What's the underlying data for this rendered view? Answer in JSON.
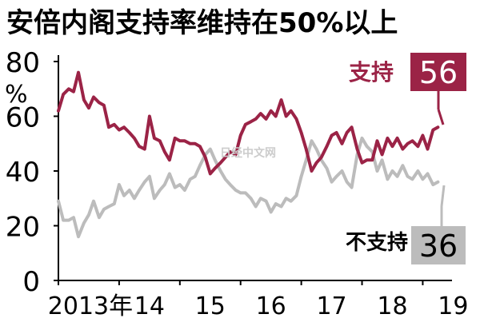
{
  "title": "安倍内阁支持率维持在50%以上",
  "watermark": "日经中文网",
  "legend": {
    "support": {
      "label": "支持",
      "last_value": "56",
      "color": "#9b2346"
    },
    "oppose": {
      "label": "不支持",
      "last_value": "36",
      "color": "#bcbcbc"
    }
  },
  "chart_data": {
    "type": "line",
    "ylabel": "%",
    "ylim": [
      0,
      80
    ],
    "yticks": [
      "0",
      "20",
      "40",
      "60",
      "80"
    ],
    "xlim": [
      2013.0,
      2019.35
    ],
    "xticks": [
      {
        "x": 2013.0,
        "label": "2013年"
      },
      {
        "x": 2014.0,
        "label": "14"
      },
      {
        "x": 2015.0,
        "label": "15"
      },
      {
        "x": 2016.0,
        "label": "16"
      },
      {
        "x": 2017.0,
        "label": "17"
      },
      {
        "x": 2018.0,
        "label": "18"
      },
      {
        "x": 2019.0,
        "label": "19"
      }
    ],
    "series": [
      {
        "name": "支持",
        "color": "#9b2346",
        "points": [
          [
            2013.0,
            62
          ],
          [
            2013.08,
            68
          ],
          [
            2013.17,
            70
          ],
          [
            2013.25,
            69
          ],
          [
            2013.33,
            76
          ],
          [
            2013.42,
            66
          ],
          [
            2013.5,
            63
          ],
          [
            2013.58,
            67
          ],
          [
            2013.67,
            65
          ],
          [
            2013.75,
            64
          ],
          [
            2013.83,
            56
          ],
          [
            2013.92,
            57
          ],
          [
            2014.0,
            55
          ],
          [
            2014.08,
            56
          ],
          [
            2014.17,
            54
          ],
          [
            2014.25,
            52
          ],
          [
            2014.33,
            49
          ],
          [
            2014.42,
            48
          ],
          [
            2014.5,
            60
          ],
          [
            2014.58,
            52
          ],
          [
            2014.67,
            51
          ],
          [
            2014.75,
            47
          ],
          [
            2014.83,
            44
          ],
          [
            2014.92,
            52
          ],
          [
            2015.0,
            51
          ],
          [
            2015.08,
            51
          ],
          [
            2015.17,
            50
          ],
          [
            2015.25,
            50
          ],
          [
            2015.33,
            49
          ],
          [
            2015.42,
            45
          ],
          [
            2015.5,
            39
          ],
          [
            2015.58,
            41
          ],
          [
            2015.67,
            43
          ],
          [
            2015.75,
            45
          ],
          [
            2015.83,
            47
          ],
          [
            2015.92,
            46
          ],
          [
            2016.0,
            53
          ],
          [
            2016.08,
            57
          ],
          [
            2016.17,
            58
          ],
          [
            2016.25,
            59
          ],
          [
            2016.33,
            61
          ],
          [
            2016.42,
            59
          ],
          [
            2016.5,
            62
          ],
          [
            2016.58,
            60
          ],
          [
            2016.67,
            66
          ],
          [
            2016.75,
            60
          ],
          [
            2016.83,
            62
          ],
          [
            2016.92,
            59
          ],
          [
            2017.0,
            54
          ],
          [
            2017.08,
            48
          ],
          [
            2017.17,
            40
          ],
          [
            2017.25,
            43
          ],
          [
            2017.33,
            45
          ],
          [
            2017.42,
            49
          ],
          [
            2017.5,
            53
          ],
          [
            2017.58,
            54
          ],
          [
            2017.67,
            50
          ],
          [
            2017.75,
            54
          ],
          [
            2017.83,
            56
          ],
          [
            2017.92,
            48
          ],
          [
            2018.0,
            43
          ],
          [
            2018.08,
            44
          ],
          [
            2018.17,
            44
          ],
          [
            2018.25,
            51
          ],
          [
            2018.33,
            46
          ],
          [
            2018.42,
            52
          ],
          [
            2018.5,
            49
          ],
          [
            2018.58,
            52
          ],
          [
            2018.67,
            48
          ],
          [
            2018.75,
            50
          ],
          [
            2018.83,
            51
          ],
          [
            2018.92,
            49
          ],
          [
            2019.0,
            53
          ],
          [
            2019.08,
            48
          ],
          [
            2019.17,
            55
          ],
          [
            2019.25,
            56
          ]
        ]
      },
      {
        "name": "不支持",
        "color": "#bcbcbc",
        "points": [
          [
            2013.0,
            29
          ],
          [
            2013.08,
            22
          ],
          [
            2013.17,
            22
          ],
          [
            2013.25,
            23
          ],
          [
            2013.33,
            16
          ],
          [
            2013.42,
            21
          ],
          [
            2013.5,
            24
          ],
          [
            2013.58,
            29
          ],
          [
            2013.67,
            23
          ],
          [
            2013.75,
            26
          ],
          [
            2013.83,
            27
          ],
          [
            2013.92,
            28
          ],
          [
            2014.0,
            35
          ],
          [
            2014.08,
            31
          ],
          [
            2014.17,
            33
          ],
          [
            2014.25,
            30
          ],
          [
            2014.33,
            33
          ],
          [
            2014.42,
            36
          ],
          [
            2014.5,
            38
          ],
          [
            2014.58,
            30
          ],
          [
            2014.67,
            33
          ],
          [
            2014.75,
            35
          ],
          [
            2014.83,
            39
          ],
          [
            2014.92,
            34
          ],
          [
            2015.0,
            35
          ],
          [
            2015.08,
            33
          ],
          [
            2015.17,
            37
          ],
          [
            2015.25,
            38
          ],
          [
            2015.33,
            42
          ],
          [
            2015.42,
            46
          ],
          [
            2015.5,
            48
          ],
          [
            2015.58,
            44
          ],
          [
            2015.67,
            40
          ],
          [
            2015.75,
            37
          ],
          [
            2015.83,
            35
          ],
          [
            2015.92,
            33
          ],
          [
            2016.0,
            32
          ],
          [
            2016.08,
            32
          ],
          [
            2016.17,
            30
          ],
          [
            2016.25,
            27
          ],
          [
            2016.33,
            30
          ],
          [
            2016.42,
            29
          ],
          [
            2016.5,
            25
          ],
          [
            2016.58,
            28
          ],
          [
            2016.67,
            27
          ],
          [
            2016.75,
            30
          ],
          [
            2016.83,
            29
          ],
          [
            2016.92,
            31
          ],
          [
            2017.0,
            38
          ],
          [
            2017.08,
            44
          ],
          [
            2017.17,
            51
          ],
          [
            2017.25,
            48
          ],
          [
            2017.33,
            44
          ],
          [
            2017.42,
            41
          ],
          [
            2017.5,
            36
          ],
          [
            2017.58,
            38
          ],
          [
            2017.67,
            40
          ],
          [
            2017.75,
            36
          ],
          [
            2017.83,
            34
          ],
          [
            2017.92,
            46
          ],
          [
            2018.0,
            52
          ],
          [
            2018.08,
            49
          ],
          [
            2018.17,
            47
          ],
          [
            2018.25,
            40
          ],
          [
            2018.33,
            44
          ],
          [
            2018.42,
            37
          ],
          [
            2018.5,
            40
          ],
          [
            2018.58,
            38
          ],
          [
            2018.67,
            42
          ],
          [
            2018.75,
            38
          ],
          [
            2018.83,
            37
          ],
          [
            2018.92,
            40
          ],
          [
            2019.0,
            37
          ],
          [
            2019.08,
            39
          ],
          [
            2019.17,
            35
          ],
          [
            2019.25,
            36
          ]
        ]
      }
    ]
  }
}
